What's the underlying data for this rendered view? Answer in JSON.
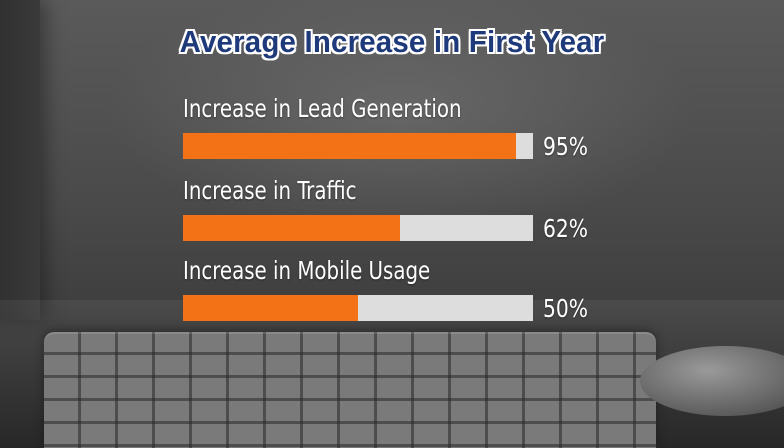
{
  "chart_data": {
    "type": "bar",
    "orientation": "horizontal",
    "title": "Average Increase in First Year",
    "categories": [
      "Increase in Lead Generation",
      "Increase in Traffic",
      "Increase in Mobile Usage"
    ],
    "values": [
      95,
      62,
      50
    ],
    "value_labels": [
      "95%",
      "62%",
      "50%"
    ],
    "ylim": [
      0,
      100
    ],
    "grid": false,
    "legend": "none"
  },
  "colors": {
    "bar_fill": "#f47216",
    "bar_track": "#dddddd",
    "title_color": "#1f3a7a",
    "label_color": "#ffffff"
  }
}
